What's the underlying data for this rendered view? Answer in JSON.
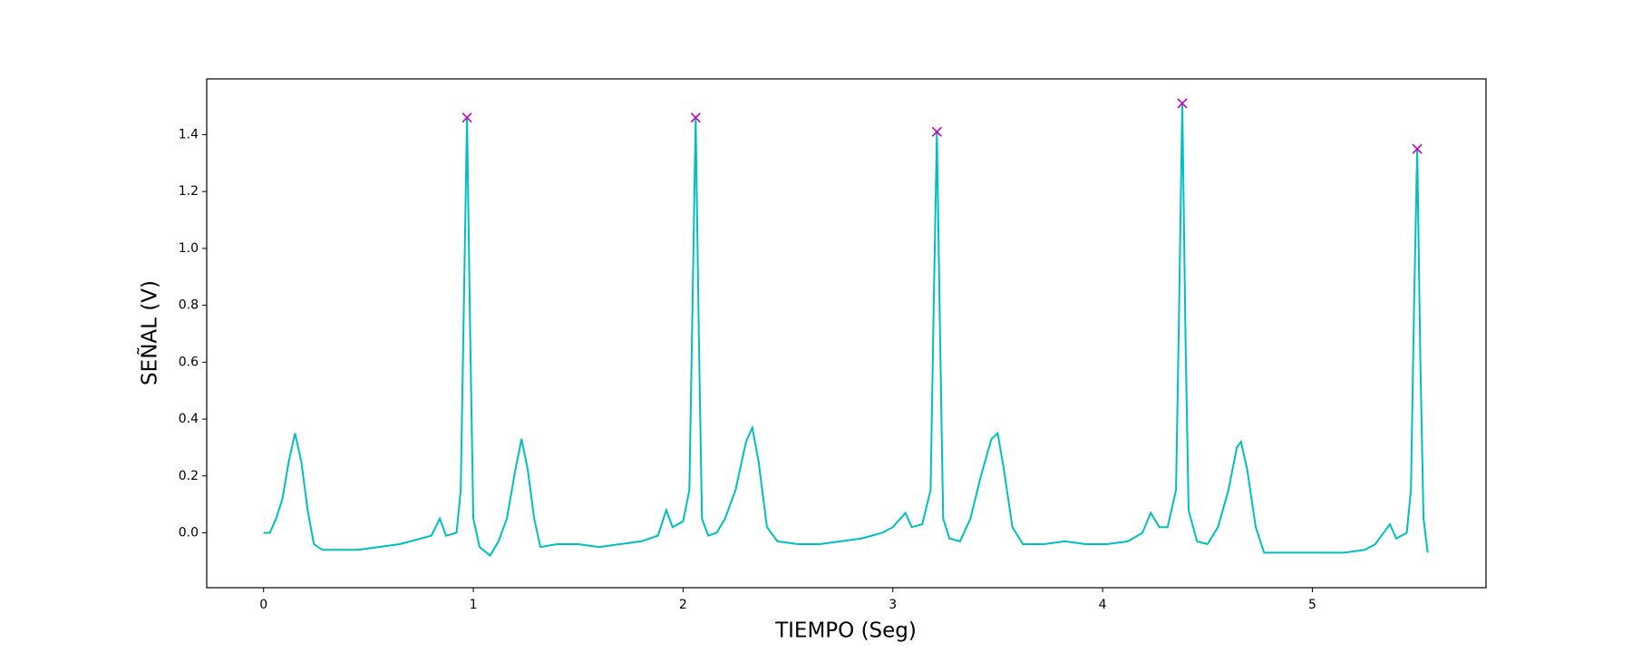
{
  "chart_data": {
    "type": "line",
    "xlabel": "TIEMPO (Seg)",
    "ylabel": "SEÑAL (V)",
    "xlim": [
      -0.271,
      5.828
    ],
    "ylim": [
      -0.193,
      1.596
    ],
    "xticks": [
      0,
      1,
      2,
      3,
      4,
      5
    ],
    "yticks": [
      {
        "value": 0,
        "label": "0.0"
      },
      0.2,
      0.4,
      0.6,
      0.8,
      {
        "value": 1,
        "label": "1.0"
      },
      1.2,
      1.4
    ],
    "series": [
      {
        "style": "line",
        "color": "#00bfbf",
        "x": [
          0,
          0.03,
          0.06,
          0.09,
          0.12,
          0.15,
          0.18,
          0.21,
          0.24,
          0.28,
          0.35,
          0.45,
          0.55,
          0.65,
          0.75,
          0.8,
          0.84,
          0.87,
          0.92,
          0.94,
          0.955,
          0.97,
          0.985,
          1.0,
          1.03,
          1.08,
          1.12,
          1.16,
          1.2,
          1.23,
          1.26,
          1.29,
          1.32,
          1.4,
          1.5,
          1.6,
          1.7,
          1.8,
          1.88,
          1.92,
          1.95,
          2.0,
          2.03,
          2.045,
          2.06,
          2.075,
          2.09,
          2.12,
          2.16,
          2.2,
          2.25,
          2.3,
          2.33,
          2.36,
          2.4,
          2.45,
          2.55,
          2.65,
          2.75,
          2.85,
          2.95,
          3.0,
          3.06,
          3.09,
          3.14,
          3.18,
          3.195,
          3.21,
          3.225,
          3.24,
          3.27,
          3.32,
          3.37,
          3.42,
          3.47,
          3.5,
          3.53,
          3.57,
          3.62,
          3.72,
          3.82,
          3.92,
          4.02,
          4.12,
          4.19,
          4.23,
          4.27,
          4.31,
          4.35,
          4.365,
          4.38,
          4.395,
          4.41,
          4.45,
          4.5,
          4.55,
          4.6,
          4.64,
          4.66,
          4.69,
          4.73,
          4.77,
          4.85,
          4.95,
          5.05,
          5.15,
          5.25,
          5.3,
          5.37,
          5.4,
          5.45,
          5.47,
          5.485,
          5.5,
          5.515,
          5.53,
          5.55
        ],
        "values": [
          0,
          0,
          0.05,
          0.12,
          0.25,
          0.35,
          0.25,
          0.08,
          -0.04,
          -0.06,
          -0.06,
          -0.06,
          -0.05,
          -0.04,
          -0.02,
          -0.01,
          0.05,
          -0.01,
          0,
          0.15,
          0.8,
          1.46,
          0.7,
          0.05,
          -0.05,
          -0.08,
          -0.03,
          0.05,
          0.22,
          0.33,
          0.22,
          0.05,
          -0.05,
          -0.04,
          -0.04,
          -0.05,
          -0.04,
          -0.03,
          -0.01,
          0.08,
          0.02,
          0.04,
          0.15,
          0.8,
          1.46,
          0.7,
          0.05,
          -0.01,
          0,
          0.05,
          0.15,
          0.32,
          0.37,
          0.25,
          0.02,
          -0.03,
          -0.04,
          -0.04,
          -0.03,
          -0.02,
          0,
          0.02,
          0.07,
          0.02,
          0.03,
          0.15,
          0.8,
          1.41,
          0.7,
          0.05,
          -0.02,
          -0.03,
          0.05,
          0.2,
          0.33,
          0.35,
          0.22,
          0.02,
          -0.04,
          -0.04,
          -0.03,
          -0.04,
          -0.04,
          -0.03,
          0,
          0.07,
          0.02,
          0.02,
          0.15,
          0.8,
          1.51,
          0.7,
          0.08,
          -0.03,
          -0.04,
          0.02,
          0.15,
          0.3,
          0.32,
          0.22,
          0.02,
          -0.07,
          -0.07,
          -0.07,
          -0.07,
          -0.07,
          -0.06,
          -0.04,
          0.03,
          -0.02,
          0,
          0.15,
          0.8,
          1.35,
          0.6,
          0.05,
          -0.07
        ]
      },
      {
        "style": "x",
        "color": "#bf00bf",
        "x": [
          0.97,
          2.06,
          3.21,
          4.38,
          5.5
        ],
        "values": [
          1.46,
          1.46,
          1.41,
          1.51,
          1.35
        ]
      }
    ]
  }
}
